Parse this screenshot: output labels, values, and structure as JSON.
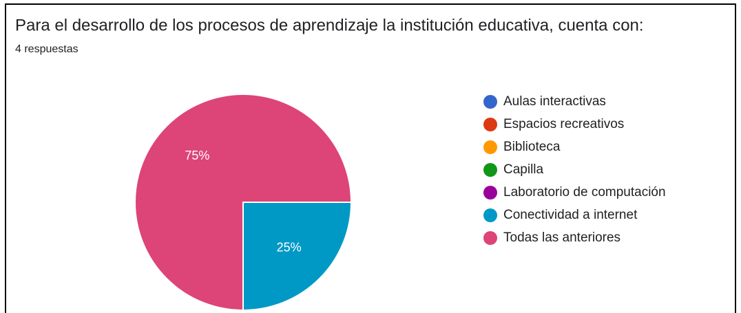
{
  "chart_data": {
    "type": "pie",
    "title": "Para el desarrollo de los procesos de aprendizaje la institución educativa, cuenta con:",
    "subtitle": "4 respuestas",
    "categories": [
      "Aulas interactivas",
      "Espacios recreativos",
      "Biblioteca",
      "Capilla",
      "Laboratorio de computación",
      "Conectividad a internet",
      "Todas las anteriores"
    ],
    "values": [
      0,
      0,
      0,
      0,
      0,
      25,
      75
    ],
    "value_labels": [
      null,
      null,
      null,
      null,
      null,
      "25%",
      "75%"
    ],
    "colors": [
      "#3366cc",
      "#dc3912",
      "#ff9900",
      "#109618",
      "#990099",
      "#0099c6",
      "#dd4477"
    ]
  }
}
